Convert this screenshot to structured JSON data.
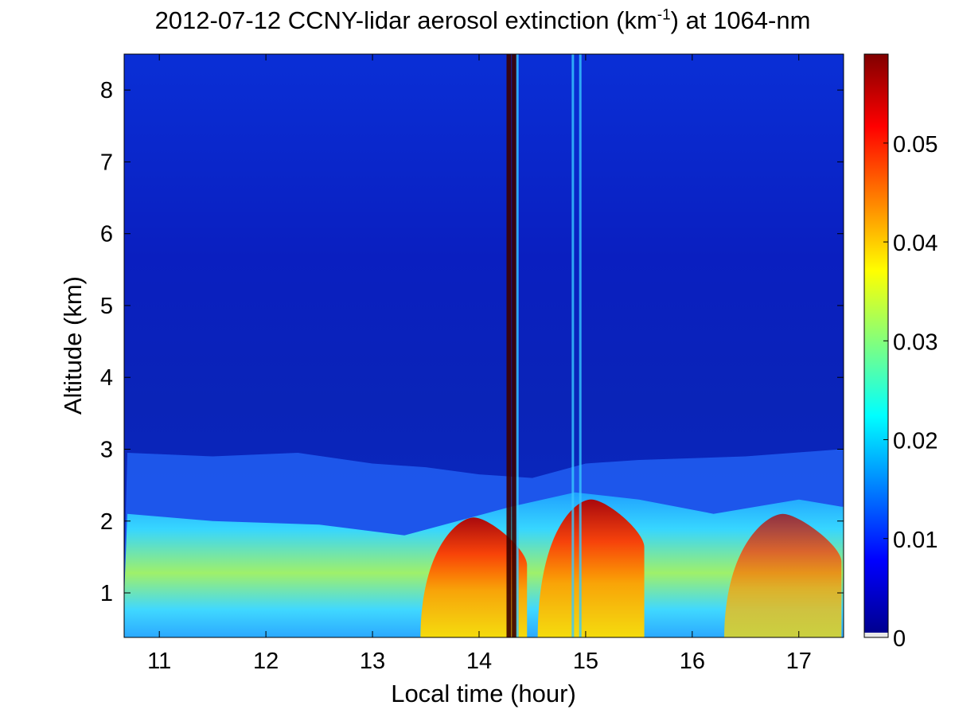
{
  "chart_data": {
    "type": "heatmap",
    "title_parts": {
      "before": "2012-07-12 CCNY-lidar aerosol extinction (km",
      "superscript": "-1",
      "after": ") at 1064-nm"
    },
    "xlabel": "Local time (hour)",
    "ylabel": "Altitude (km)",
    "xlim": [
      10.67,
      17.42
    ],
    "ylim": [
      0.38,
      8.5
    ],
    "xticks": [
      "11",
      "12",
      "13",
      "14",
      "15",
      "16",
      "17"
    ],
    "yticks": [
      "1",
      "2",
      "3",
      "4",
      "5",
      "6",
      "7",
      "8"
    ],
    "colorbar": {
      "label_units": "km^-1",
      "range": [
        0,
        0.059
      ],
      "ticks": [
        "0",
        "0.01",
        "0.02",
        "0.03",
        "0.04",
        "0.05"
      ],
      "colormap": "jet"
    },
    "features": {
      "upper_boundary_layer_km": [
        [
          10.7,
          2.95
        ],
        [
          11.5,
          2.9
        ],
        [
          12.3,
          2.95
        ],
        [
          13.0,
          2.8
        ],
        [
          13.5,
          2.75
        ],
        [
          14.0,
          2.65
        ],
        [
          14.5,
          2.6
        ],
        [
          15.0,
          2.8
        ],
        [
          15.5,
          2.85
        ],
        [
          16.5,
          2.9
        ],
        [
          17.4,
          3.0
        ]
      ],
      "haze_top_km": [
        [
          10.7,
          2.1
        ],
        [
          11.5,
          2.0
        ],
        [
          12.5,
          1.95
        ],
        [
          13.3,
          1.8
        ],
        [
          13.8,
          2.0
        ],
        [
          14.3,
          2.2
        ],
        [
          14.9,
          2.4
        ],
        [
          15.5,
          2.3
        ],
        [
          16.2,
          2.1
        ],
        [
          17.0,
          2.3
        ],
        [
          17.4,
          2.2
        ]
      ],
      "strong_plume_periods_hour": [
        [
          13.45,
          14.45
        ],
        [
          14.55,
          15.55
        ],
        [
          16.3,
          17.4
        ]
      ],
      "cloud_columns_hour": [
        14.28,
        14.33,
        14.36,
        14.88,
        14.95
      ]
    }
  }
}
